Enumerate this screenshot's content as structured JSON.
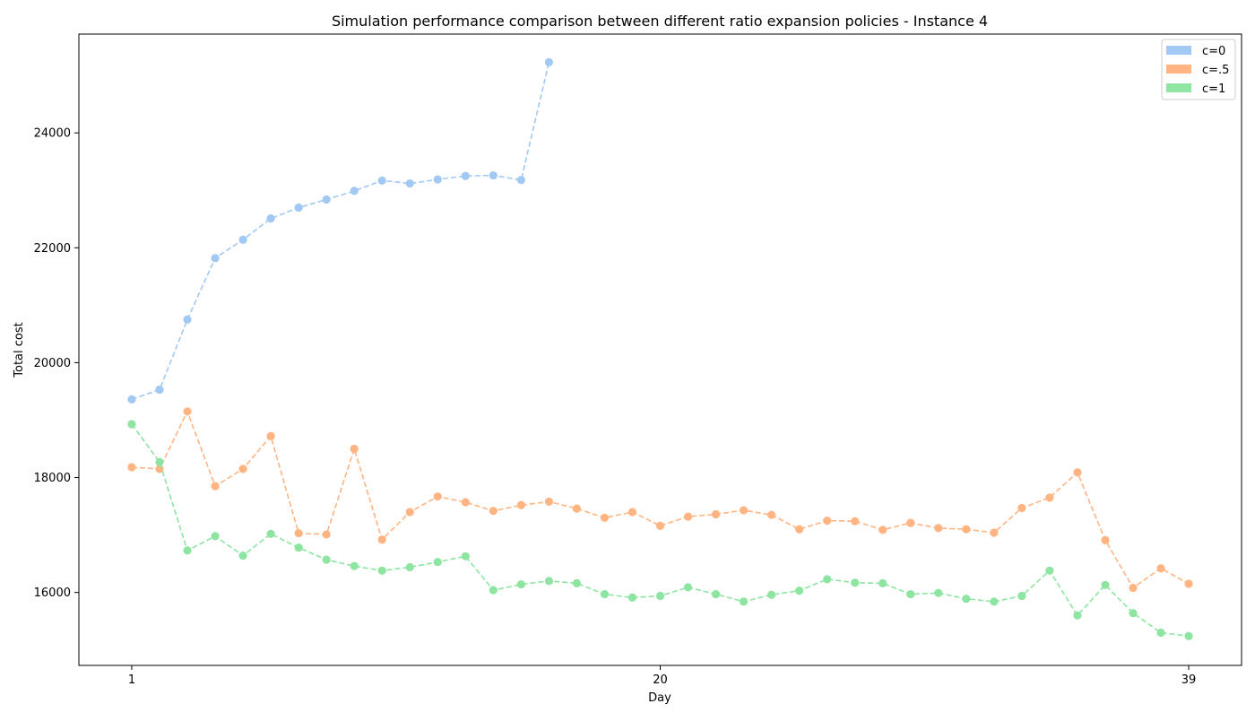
{
  "chart_data": {
    "type": "line",
    "title": "Simulation performance comparison between different ratio expansion policies - Instance 4",
    "xlabel": "Day",
    "ylabel": "Total cost",
    "xlim": [
      -0.9,
      40.9
    ],
    "ylim": [
      14730,
      25720
    ],
    "x_ticks": [
      1,
      20,
      39
    ],
    "y_ticks": [
      16000,
      18000,
      20000,
      22000,
      24000
    ],
    "grid": false,
    "legend_position": "top-right",
    "line_style": "dashed",
    "marker": "circle",
    "series": [
      {
        "name": "c=0",
        "color": "#a1c9f4",
        "x": [
          1,
          2,
          3,
          4,
          5,
          6,
          7,
          8,
          9,
          10,
          11,
          12,
          13,
          14,
          15,
          16
        ],
        "values": [
          19360,
          19530,
          20750,
          21820,
          22140,
          22510,
          22700,
          22840,
          22990,
          23170,
          23120,
          23190,
          23250,
          23260,
          23180,
          25230
        ]
      },
      {
        "name": "c=.5",
        "color": "#ffb482",
        "x": [
          1,
          2,
          3,
          4,
          5,
          6,
          7,
          8,
          9,
          10,
          11,
          12,
          13,
          14,
          15,
          16,
          17,
          18,
          19,
          20,
          21,
          22,
          23,
          24,
          25,
          26,
          27,
          28,
          29,
          30,
          31,
          32,
          33,
          34,
          35,
          36,
          37,
          38,
          39
        ],
        "values": [
          18180,
          18150,
          19150,
          17850,
          18150,
          18720,
          17030,
          17010,
          18500,
          16920,
          17400,
          17670,
          17570,
          17420,
          17520,
          17580,
          17460,
          17300,
          17400,
          17160,
          17320,
          17360,
          17430,
          17350,
          17100,
          17250,
          17240,
          17090,
          17210,
          17120,
          17100,
          17040,
          17470,
          17650,
          18090,
          16910,
          16080,
          16420,
          16150
        ]
      },
      {
        "name": "c=1",
        "color": "#8de5a1",
        "x": [
          1,
          2,
          3,
          4,
          5,
          6,
          7,
          8,
          9,
          10,
          11,
          12,
          13,
          14,
          15,
          16,
          17,
          18,
          19,
          20,
          21,
          22,
          23,
          24,
          25,
          26,
          27,
          28,
          29,
          30,
          31,
          32,
          33,
          34,
          35,
          36,
          37,
          38,
          39
        ],
        "values": [
          18930,
          18270,
          16730,
          16980,
          16640,
          17020,
          16780,
          16570,
          16460,
          16380,
          16440,
          16530,
          16630,
          16040,
          16140,
          16200,
          16160,
          15970,
          15910,
          15940,
          16090,
          15970,
          15840,
          15960,
          16030,
          16230,
          16170,
          16160,
          15970,
          15990,
          15890,
          15840,
          15940,
          16380,
          15600,
          16130,
          15640,
          15300,
          15240
        ]
      }
    ]
  }
}
